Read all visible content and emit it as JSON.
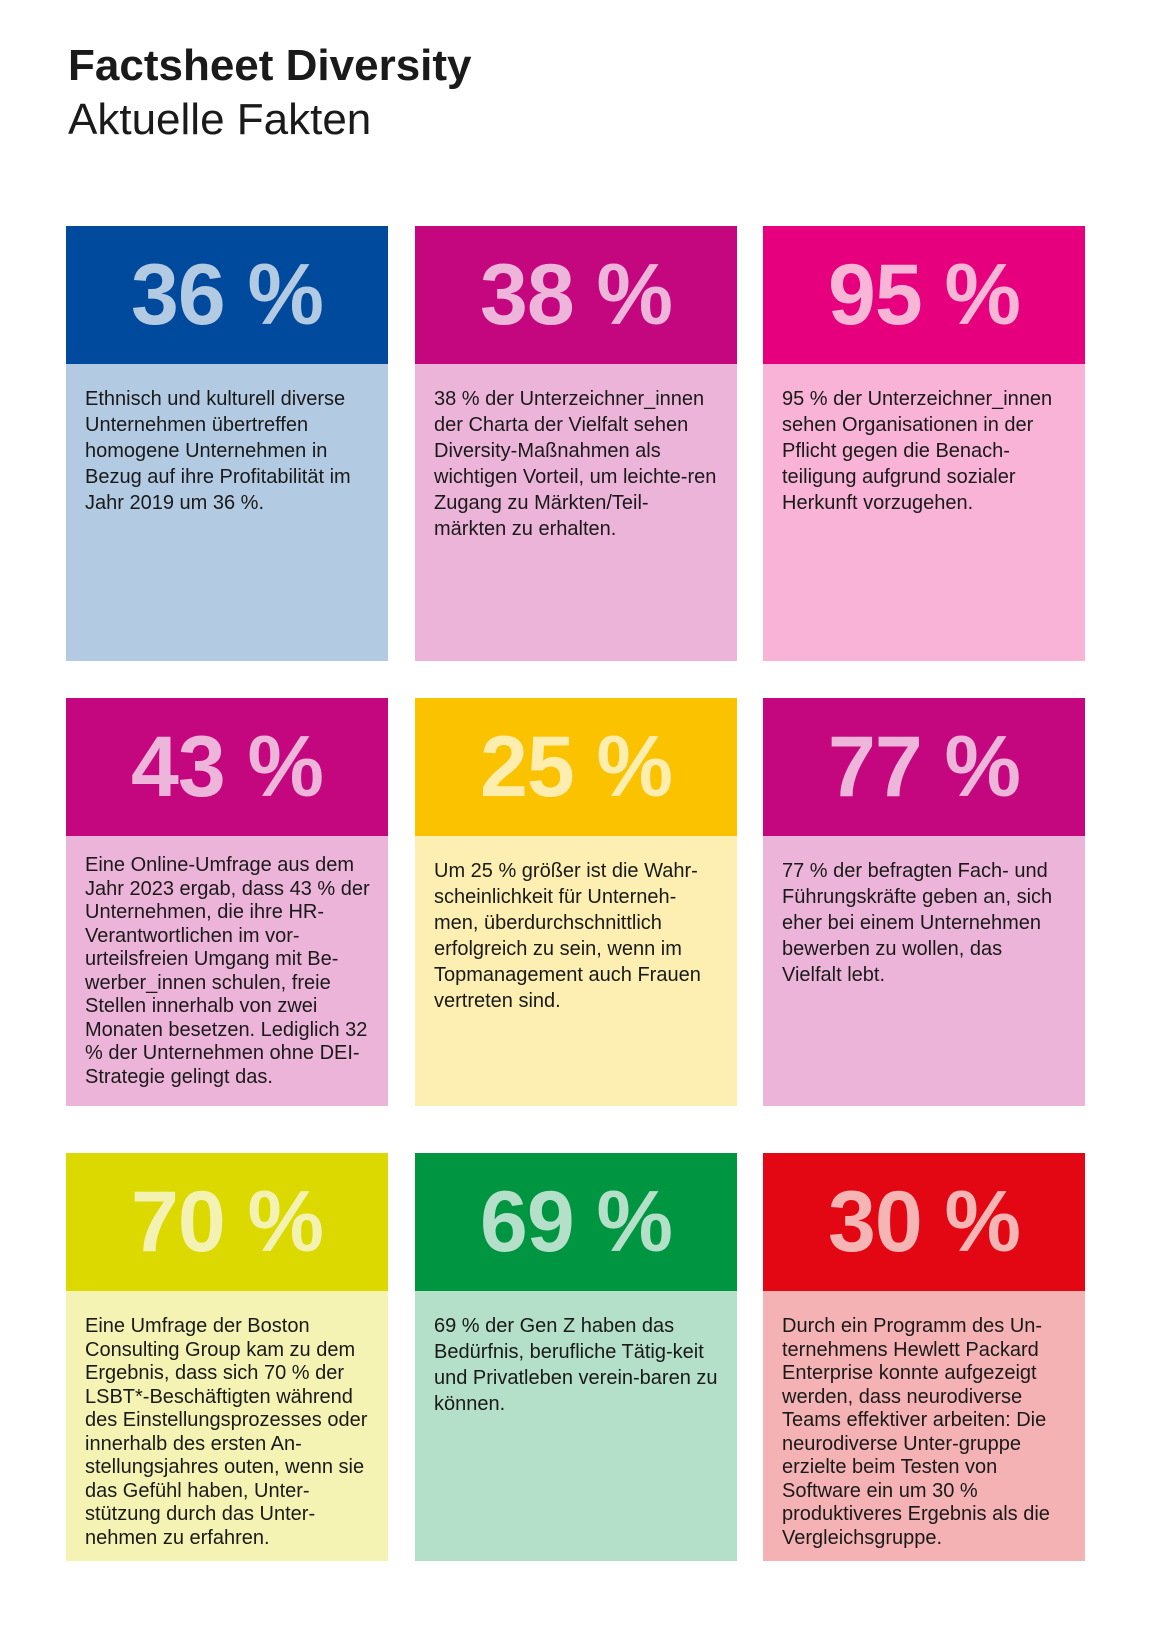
{
  "header": {
    "title": "Factsheet Diversity",
    "subtitle": "Aktuelle Fakten"
  },
  "cards": [
    {
      "value": "36 %",
      "text": "Ethnisch und kulturell diverse Unternehmen übertreffen homogene Unternehmen in Bezug auf ihre Profitabilität im Jahr 2019 um 36 %.",
      "head_color": "#004a9e",
      "value_color": "#b3cae3",
      "body_color": "#b3cae3"
    },
    {
      "value": "38 %",
      "text": "38 % der Unterzeichner_innen der Charta der Vielfalt sehen Diversity-Maßnahmen als wichtigen Vorteil, um leichte-ren Zugang zu Märkten/Teil-märkten zu erhalten.",
      "head_color": "#c5077f",
      "value_color": "#eeb5da",
      "body_color": "#edb4da"
    },
    {
      "value": "95 %",
      "text": "95 % der Unterzeichner_innen sehen Organisationen in der Pflicht gegen die Benach-teiligung aufgrund sozialer Herkunft vorzugehen.",
      "head_color": "#e6007e",
      "value_color": "#f8b6d6",
      "body_color": "#f8b3d6"
    },
    {
      "value": "43 %",
      "text": "Eine Online-Umfrage aus dem Jahr 2023 ergab, dass 43 % der Unternehmen, die ihre HR-Verantwortlichen im vor-urteilsfreien Umgang mit Be-werber_innen schulen, freie Stellen innerhalb von zwei Monaten besetzen. Lediglich 32 % der Unternehmen ohne DEI-Strategie gelingt das.",
      "head_color": "#c5077f",
      "value_color": "#eeb5da",
      "body_color": "#edb4da"
    },
    {
      "value": "25 %",
      "text": "Um 25 % größer ist die Wahr-scheinlichkeit für Unterneh-men, überdurchschnittlich erfolgreich zu sein, wenn im Topmanagement auch Frauen vertreten sind.",
      "head_color": "#fbc200",
      "value_color": "#fdeeb0",
      "body_color": "#fdeeb1"
    },
    {
      "value": "77 %",
      "text": "77 % der befragten Fach- und Führungskräfte geben an, sich eher bei einem Unternehmen bewerben zu wollen, das Vielfalt lebt.",
      "head_color": "#c5077f",
      "value_color": "#eeb5da",
      "body_color": "#edb4da"
    },
    {
      "value": "70 %",
      "text": "Eine Umfrage der Boston Consulting Group kam zu dem Ergebnis, dass sich 70 % der LSBT*-Beschäftigten während des Einstellungsprozesses oder innerhalb des ersten An-stellungsjahres outen, wenn sie das Gefühl haben, Unter-stützung durch das Unter-nehmen zu erfahren.",
      "head_color": "#dcd900",
      "value_color": "#f3f2b3",
      "body_color": "#f4f3b4"
    },
    {
      "value": "69 %",
      "text": "69 % der Gen Z haben das Bedürfnis, berufliche Tätig-keit und Privatleben verein-baren zu können.",
      "head_color": "#009641",
      "value_color": "#b4dfc8",
      "body_color": "#b4dfc8"
    },
    {
      "value": "30 %",
      "text": "Durch ein Programm des Un-ternehmens Hewlett Packard Enterprise konnte aufgezeigt werden, dass neurodiverse Teams effektiver arbeiten: Die neurodiverse Unter-gruppe erzielte beim Testen von Software ein um 30 % produktiveres Ergebnis als die Vergleichsgruppe.",
      "head_color": "#e30613",
      "value_color": "#f5b5b5",
      "body_color": "#f5b2b4"
    }
  ]
}
